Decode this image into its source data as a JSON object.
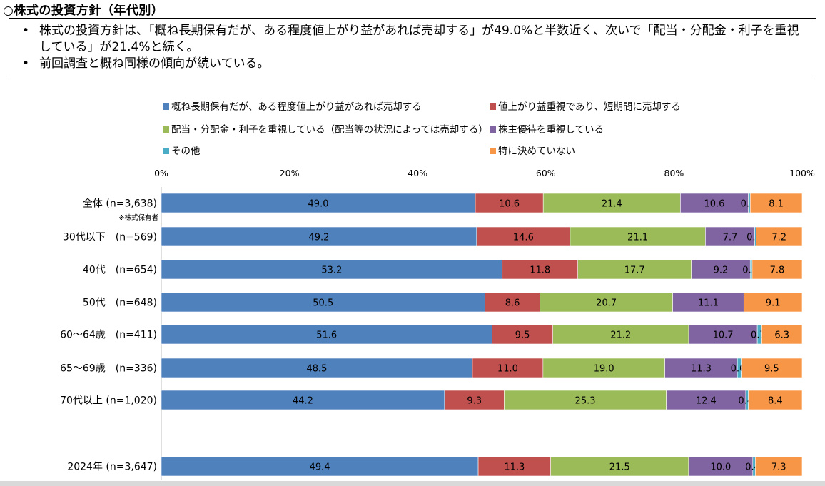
{
  "title": "○株式の投資方針（年代別）",
  "summary": {
    "bullets": [
      "株式の投資方針は、「概ね長期保有だが、ある程度値上がり益があれば売却する」が49.0%と半数近く、次いで「配当・分配金・利子を重視している」が21.4%と続く。",
      "前回調査と概ね同様の傾向が続いている。"
    ]
  },
  "colors": {
    "series": [
      "#4f81bd",
      "#c0504d",
      "#9bbb59",
      "#8064a2",
      "#4bacc6",
      "#f79646"
    ]
  },
  "chart_data": {
    "type": "bar",
    "orientation": "horizontal",
    "stacked": "percent",
    "categories": [
      "全体 (n=3,638)",
      "30代以下　(n=569)",
      "40代　(n=654)",
      "50代　(n=648)",
      "60～64歳　(n=411)",
      "65～69歳　(n=336)",
      "70代以上 (n=1,020)",
      "2024年 (n=3,647)"
    ],
    "category_notes": [
      "※株式保有者",
      "",
      "",
      "",
      "",
      "",
      "",
      ""
    ],
    "series": [
      {
        "name": "概ね長期保有だが、ある程度値上がり益があれば売却する",
        "values": [
          49.0,
          49.2,
          53.2,
          50.5,
          51.6,
          48.5,
          44.2,
          49.4
        ]
      },
      {
        "name": "値上がり益重視であり、短期間に売却する",
        "values": [
          10.6,
          14.6,
          11.8,
          8.6,
          9.5,
          11.0,
          9.3,
          11.3
        ]
      },
      {
        "name": "配当・分配金・利子を重視している（配当等の状況によっては売却する）",
        "values": [
          21.4,
          21.1,
          17.7,
          20.7,
          21.2,
          19.0,
          25.3,
          21.5
        ]
      },
      {
        "name": "株主優待を重視している",
        "values": [
          10.6,
          7.7,
          9.2,
          11.1,
          10.7,
          11.3,
          12.4,
          10.0
        ]
      },
      {
        "name": "その他",
        "values": [
          0.3,
          0.2,
          0.3,
          0.0,
          0.7,
          0.6,
          0.4,
          0.4
        ]
      },
      {
        "name": "特に決めていない",
        "values": [
          8.1,
          7.2,
          7.8,
          9.1,
          6.3,
          9.5,
          8.4,
          7.3
        ]
      }
    ],
    "value_labels": [
      [
        "49.0",
        "10.6",
        "21.4",
        "10.6",
        "0.3",
        "8.1"
      ],
      [
        "49.2",
        "14.6",
        "21.1",
        "7.7",
        "0.2",
        "7.2"
      ],
      [
        "53.2",
        "11.8",
        "17.7",
        "9.2",
        "0.3",
        "7.8"
      ],
      [
        "50.5",
        "8.6",
        "20.7",
        "11.1",
        "",
        "9.1"
      ],
      [
        "51.6",
        "9.5",
        "21.2",
        "10.7",
        "0.7",
        "6.3"
      ],
      [
        "48.5",
        "11.0",
        "19.0",
        "11.3",
        "0.6",
        "9.5"
      ],
      [
        "44.2",
        "9.3",
        "25.3",
        "12.4",
        "0.4",
        "8.4"
      ],
      [
        "49.4",
        "11.3",
        "21.5",
        "10.0",
        "0.4",
        "7.3"
      ]
    ],
    "x_ticks": [
      "0%",
      "20%",
      "40%",
      "60%",
      "80%",
      "100%"
    ],
    "xlim": [
      0,
      100
    ],
    "legend_position": "top"
  }
}
